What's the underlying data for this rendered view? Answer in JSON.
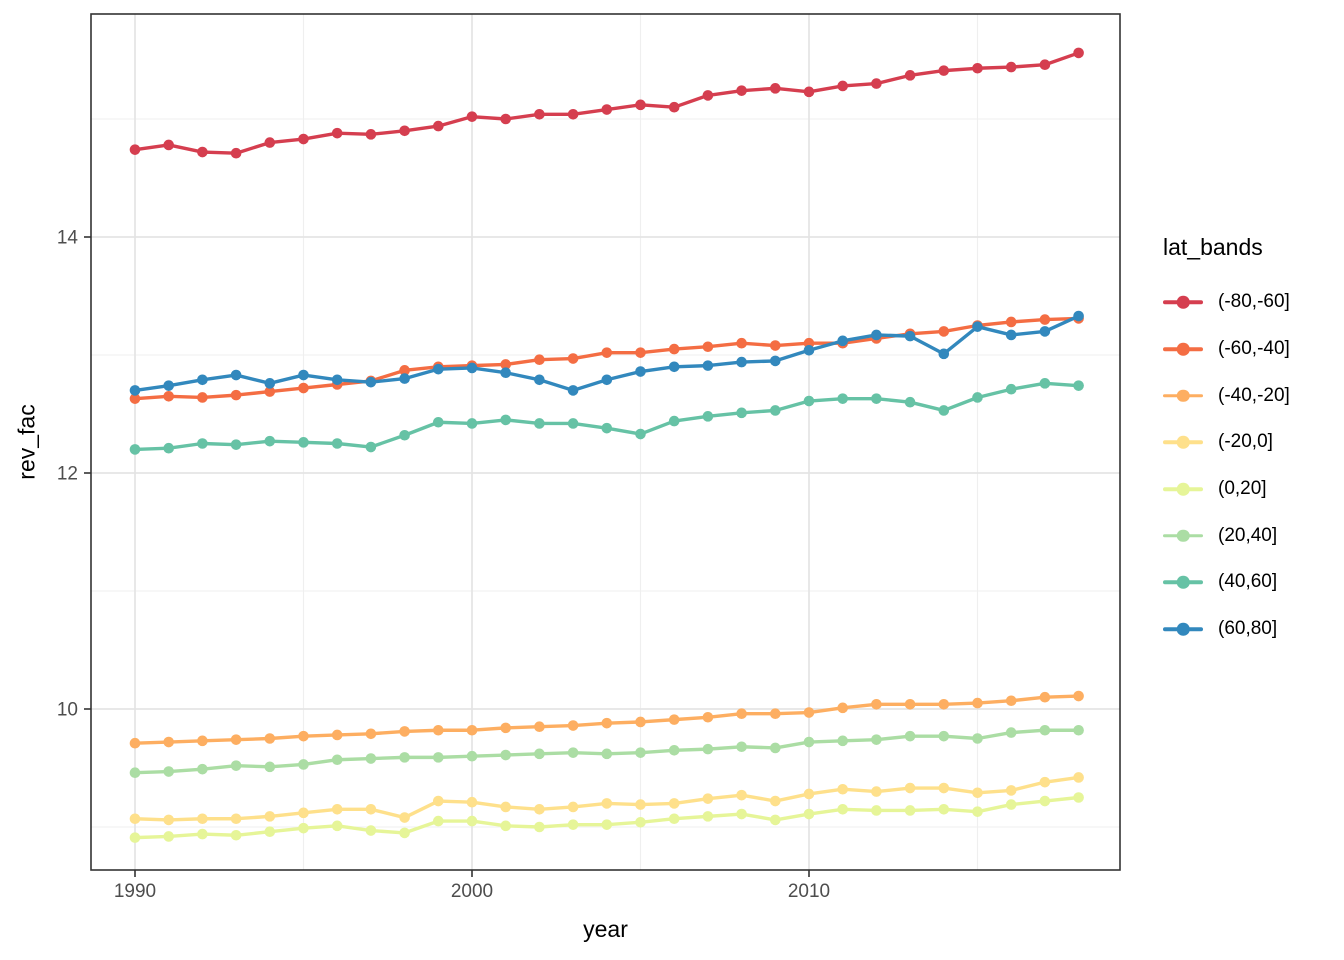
{
  "theme": {
    "background": "#ffffff",
    "panel_background": "#ffffff",
    "panel_border": "#333333",
    "grid_major": "#e4e4e4",
    "grid_minor": "#efefef",
    "tick_mark": "#333333",
    "tick_label_color": "#4d4d4d",
    "text_color": "#000000"
  },
  "chart_data": {
    "type": "line",
    "title": "",
    "xlabel": "year",
    "ylabel": "rev_fac",
    "legend_title": "lat_bands",
    "legend_position": "right",
    "grid": true,
    "xlim": [
      1988.7,
      2019.3
    ],
    "ylim": [
      8.64,
      15.89
    ],
    "x_ticks": [
      1990,
      2000,
      2010
    ],
    "x_minor": [
      1995,
      2005,
      2015
    ],
    "y_ticks": [
      10,
      12,
      14
    ],
    "y_minor": [
      9,
      11,
      13,
      15
    ],
    "x": [
      1990,
      1991,
      1992,
      1993,
      1994,
      1995,
      1996,
      1997,
      1998,
      1999,
      2000,
      2001,
      2002,
      2003,
      2004,
      2005,
      2006,
      2007,
      2008,
      2009,
      2010,
      2011,
      2012,
      2013,
      2014,
      2015,
      2016,
      2017,
      2018
    ],
    "series": [
      {
        "name": "(-80,-60]",
        "color": "#d53e4f",
        "values": [
          14.74,
          14.78,
          14.72,
          14.71,
          14.8,
          14.83,
          14.88,
          14.87,
          14.9,
          14.94,
          15.02,
          15.0,
          15.04,
          15.04,
          15.08,
          15.12,
          15.1,
          15.2,
          15.24,
          15.26,
          15.23,
          15.28,
          15.3,
          15.37,
          15.41,
          15.43,
          15.44,
          15.46,
          15.56
        ]
      },
      {
        "name": "(-60,-40]",
        "color": "#f46d43",
        "values": [
          12.63,
          12.65,
          12.64,
          12.66,
          12.69,
          12.72,
          12.75,
          12.78,
          12.87,
          12.9,
          12.91,
          12.92,
          12.96,
          12.97,
          13.02,
          13.02,
          13.05,
          13.07,
          13.1,
          13.08,
          13.1,
          13.1,
          13.14,
          13.18,
          13.2,
          13.25,
          13.28,
          13.3,
          13.31
        ]
      },
      {
        "name": "(-40,-20]",
        "color": "#fdae61",
        "values": [
          9.71,
          9.72,
          9.73,
          9.74,
          9.75,
          9.77,
          9.78,
          9.79,
          9.81,
          9.82,
          9.82,
          9.84,
          9.85,
          9.86,
          9.88,
          9.89,
          9.91,
          9.93,
          9.96,
          9.96,
          9.97,
          10.01,
          10.04,
          10.04,
          10.04,
          10.05,
          10.07,
          10.1,
          10.11
        ]
      },
      {
        "name": "(-20,0]",
        "color": "#fee08b",
        "values": [
          9.07,
          9.06,
          9.07,
          9.07,
          9.09,
          9.12,
          9.15,
          9.15,
          9.08,
          9.22,
          9.21,
          9.17,
          9.15,
          9.17,
          9.2,
          9.19,
          9.2,
          9.24,
          9.27,
          9.22,
          9.28,
          9.32,
          9.3,
          9.33,
          9.33,
          9.29,
          9.31,
          9.38,
          9.42
        ]
      },
      {
        "name": "(0,20]",
        "color": "#e6f598",
        "values": [
          8.91,
          8.92,
          8.94,
          8.93,
          8.96,
          8.99,
          9.01,
          8.97,
          8.95,
          9.05,
          9.05,
          9.01,
          9.0,
          9.02,
          9.02,
          9.04,
          9.07,
          9.09,
          9.11,
          9.06,
          9.11,
          9.15,
          9.14,
          9.14,
          9.15,
          9.13,
          9.19,
          9.22,
          9.25
        ]
      },
      {
        "name": "(20,40]",
        "color": "#abdda4",
        "values": [
          9.46,
          9.47,
          9.49,
          9.52,
          9.51,
          9.53,
          9.57,
          9.58,
          9.59,
          9.59,
          9.6,
          9.61,
          9.62,
          9.63,
          9.62,
          9.63,
          9.65,
          9.66,
          9.68,
          9.67,
          9.72,
          9.73,
          9.74,
          9.77,
          9.77,
          9.75,
          9.8,
          9.82,
          9.82
        ]
      },
      {
        "name": "(40,60]",
        "color": "#66c2a5",
        "values": [
          12.2,
          12.21,
          12.25,
          12.24,
          12.27,
          12.26,
          12.25,
          12.22,
          12.32,
          12.43,
          12.42,
          12.45,
          12.42,
          12.42,
          12.38,
          12.33,
          12.44,
          12.48,
          12.51,
          12.53,
          12.61,
          12.63,
          12.63,
          12.6,
          12.53,
          12.64,
          12.71,
          12.76,
          12.74
        ]
      },
      {
        "name": "(60,80]",
        "color": "#3288bd",
        "values": [
          12.7,
          12.74,
          12.79,
          12.83,
          12.76,
          12.83,
          12.79,
          12.77,
          12.8,
          12.88,
          12.89,
          12.85,
          12.79,
          12.7,
          12.79,
          12.86,
          12.9,
          12.91,
          12.94,
          12.95,
          13.04,
          13.12,
          13.17,
          13.16,
          13.01,
          13.24,
          13.17,
          13.2,
          13.33
        ]
      }
    ]
  }
}
